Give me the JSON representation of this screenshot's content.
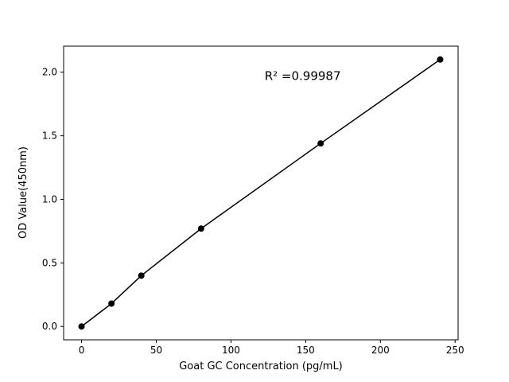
{
  "chart_data": {
    "type": "scatter",
    "x": [
      0,
      20,
      40,
      80,
      160,
      240
    ],
    "y": [
      0.0,
      0.18,
      0.4,
      0.77,
      1.44,
      2.1
    ],
    "line": true,
    "title": "",
    "xlabel": "Goat GC Concentration (pg/mL)",
    "ylabel": "OD Value(450nm)",
    "xlim": [
      -12,
      252
    ],
    "ylim": [
      -0.105,
      2.205
    ],
    "x_ticks": [
      0,
      50,
      100,
      150,
      200,
      250
    ],
    "x_tick_labels": [
      "0",
      "50",
      "100",
      "150",
      "200",
      "250"
    ],
    "y_ticks": [
      0.0,
      0.5,
      1.0,
      1.5,
      2.0
    ],
    "y_tick_labels": [
      "0.0",
      "0.5",
      "1.0",
      "1.5",
      "2.0"
    ],
    "annotation": {
      "text": "R² =0.99987",
      "x": 148,
      "y": 1.94
    },
    "grid": false,
    "legend": null,
    "line_color": "#000000",
    "marker_color": "#000000",
    "background_color": "#ffffff"
  }
}
